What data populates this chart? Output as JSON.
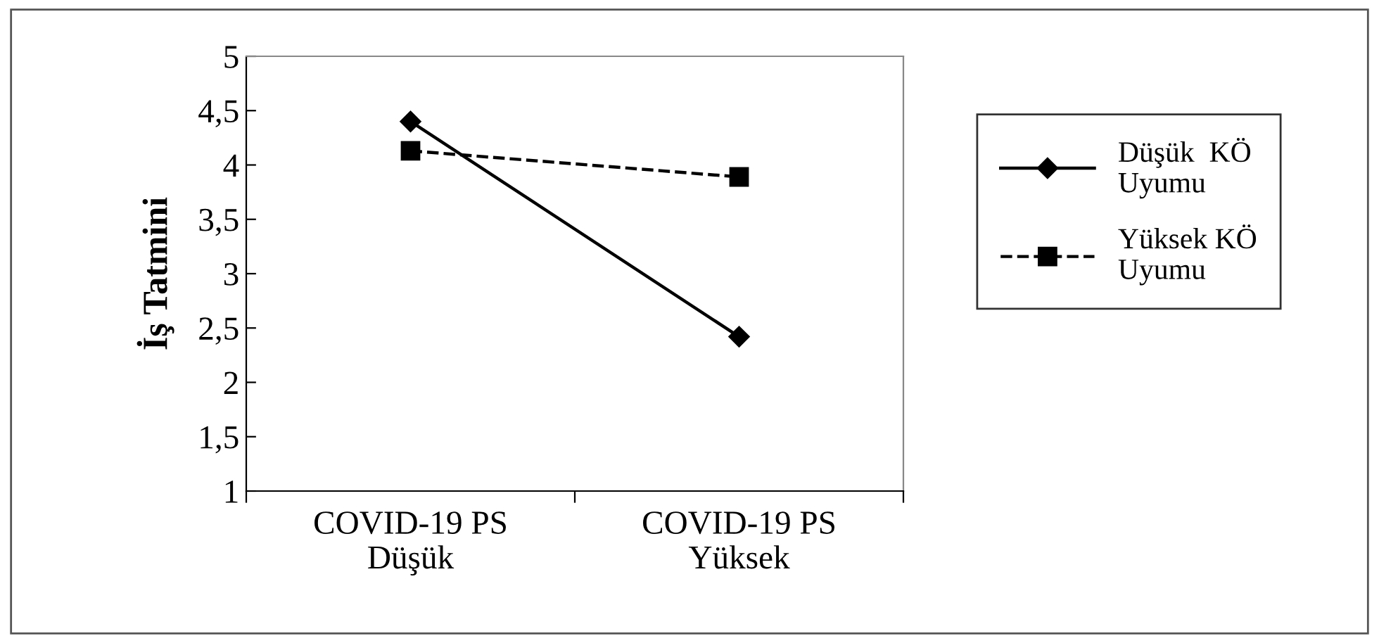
{
  "chart_data": {
    "type": "line",
    "ylabel": "İş Tatmini",
    "categories": [
      "COVID-19 PS\nDüşük",
      "COVID-19 PS\nYüksek"
    ],
    "series": [
      {
        "name": "Düşük  KÖ\nUyumu",
        "color": "#000000",
        "values": [
          4.4,
          2.42
        ],
        "marker": "diamond",
        "line_style": "solid"
      },
      {
        "name": "Yüksek KÖ\nUyumu",
        "color": "#000000",
        "values": [
          4.13,
          3.89
        ],
        "marker": "square",
        "line_style": "dashed"
      }
    ],
    "ylim": [
      1,
      5
    ],
    "yticks": [
      1,
      {
        "value": 1.5,
        "label": "1,5"
      },
      2,
      {
        "value": 2.5,
        "label": "2,5"
      },
      3,
      {
        "value": 3.5,
        "label": "3,5"
      },
      4,
      {
        "value": 4.5,
        "label": "4,5"
      },
      5
    ],
    "grid": false,
    "legend": "right"
  }
}
